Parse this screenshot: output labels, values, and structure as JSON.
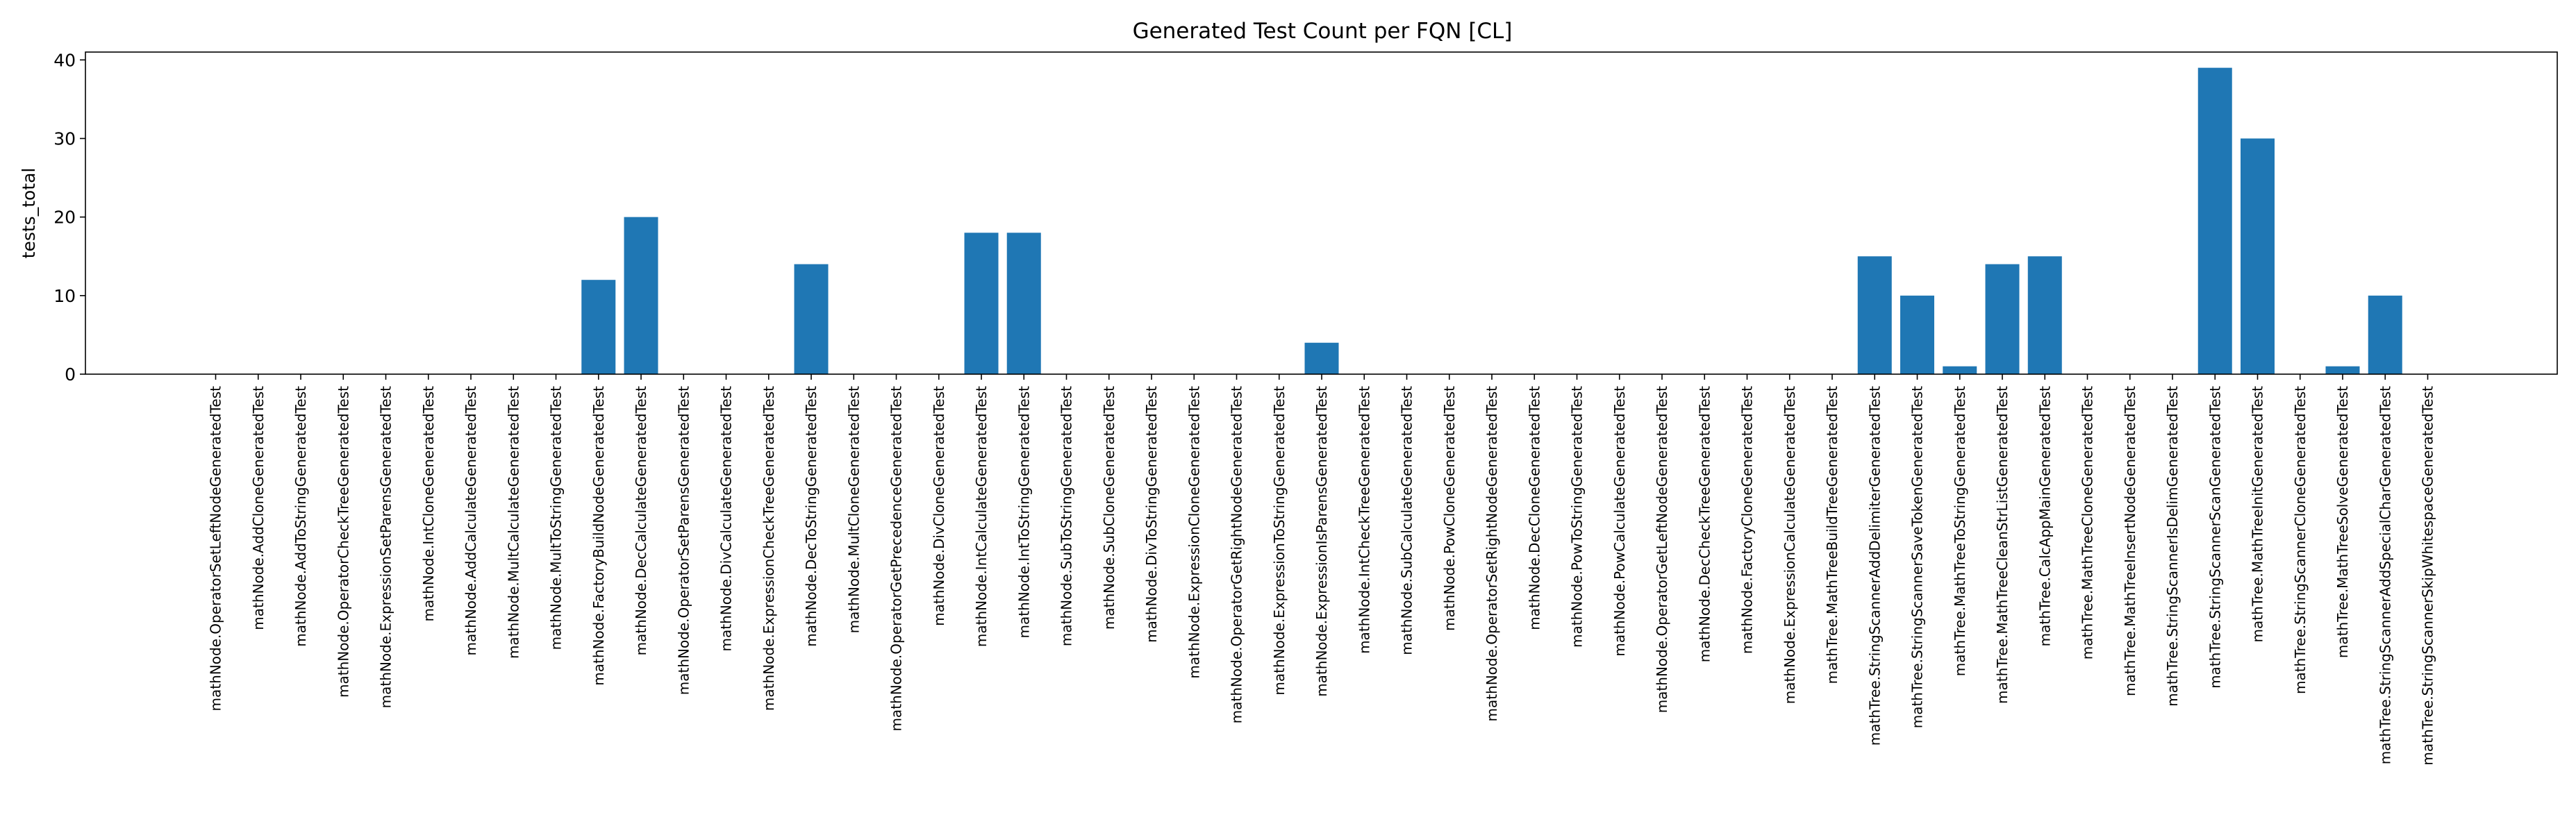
{
  "chart_data": {
    "type": "bar",
    "title": "Generated Test Count per FQN [CL]",
    "xlabel": "",
    "ylabel": "tests_total",
    "ylim": [
      0,
      41
    ],
    "yticks": [
      0,
      10,
      20,
      30,
      40
    ],
    "grid": false,
    "bar_color": "#1f77b4",
    "categories": [
      "mathNode.OperatorSetLeftNodeGeneratedTest",
      "mathNode.AddCloneGeneratedTest",
      "mathNode.AddToStringGeneratedTest",
      "mathNode.OperatorCheckTreeGeneratedTest",
      "mathNode.ExpressionSetParensGeneratedTest",
      "mathNode.IntCloneGeneratedTest",
      "mathNode.AddCalculateGeneratedTest",
      "mathNode.MultCalculateGeneratedTest",
      "mathNode.MultToStringGeneratedTest",
      "mathNode.FactoryBuildNodeGeneratedTest",
      "mathNode.DecCalculateGeneratedTest",
      "mathNode.OperatorSetParensGeneratedTest",
      "mathNode.DivCalculateGeneratedTest",
      "mathNode.ExpressionCheckTreeGeneratedTest",
      "mathNode.DecToStringGeneratedTest",
      "mathNode.MultCloneGeneratedTest",
      "mathNode.OperatorGetPrecedenceGeneratedTest",
      "mathNode.DivCloneGeneratedTest",
      "mathNode.IntCalculateGeneratedTest",
      "mathNode.IntToStringGeneratedTest",
      "mathNode.SubToStringGeneratedTest",
      "mathNode.SubCloneGeneratedTest",
      "mathNode.DivToStringGeneratedTest",
      "mathNode.ExpressionCloneGeneratedTest",
      "mathNode.OperatorGetRightNodeGeneratedTest",
      "mathNode.ExpressionToStringGeneratedTest",
      "mathNode.ExpressionIsParensGeneratedTest",
      "mathNode.IntCheckTreeGeneratedTest",
      "mathNode.SubCalculateGeneratedTest",
      "mathNode.PowCloneGeneratedTest",
      "mathNode.OperatorSetRightNodeGeneratedTest",
      "mathNode.DecCloneGeneratedTest",
      "mathNode.PowToStringGeneratedTest",
      "mathNode.PowCalculateGeneratedTest",
      "mathNode.OperatorGetLeftNodeGeneratedTest",
      "mathNode.DecCheckTreeGeneratedTest",
      "mathNode.FactoryCloneGeneratedTest",
      "mathNode.ExpressionCalculateGeneratedTest",
      "mathTree.MathTreeBuildTreeGeneratedTest",
      "mathTree.StringScannerAddDelimiterGeneratedTest",
      "mathTree.StringScannerSaveTokenGeneratedTest",
      "mathTree.MathTreeToStringGeneratedTest",
      "mathTree.MathTreeCleanStrListGeneratedTest",
      "mathTree.CalcAppMainGeneratedTest",
      "mathTree.MathTreeCloneGeneratedTest",
      "mathTree.MathTreeInsertNodeGeneratedTest",
      "mathTree.StringScannerIsDelimGeneratedTest",
      "mathTree.StringScannerScanGeneratedTest",
      "mathTree.MathTreeInitGeneratedTest",
      "mathTree.StringScannerCloneGeneratedTest",
      "mathTree.MathTreeSolveGeneratedTest",
      "mathTree.StringScannerAddSpecialCharGeneratedTest",
      "mathTree.StringScannerSkipWhitespaceGeneratedTest"
    ],
    "values": [
      0,
      0,
      0,
      0,
      0,
      0,
      0,
      0,
      0,
      12,
      20,
      0,
      0,
      0,
      14,
      0,
      0,
      0,
      18,
      18,
      0,
      0,
      0,
      0,
      0,
      0,
      4,
      0,
      0,
      0,
      0,
      0,
      0,
      0,
      0,
      0,
      0,
      0,
      0,
      15,
      10,
      1,
      14,
      15,
      0,
      0,
      0,
      39,
      30,
      0,
      1,
      10,
      0
    ]
  }
}
